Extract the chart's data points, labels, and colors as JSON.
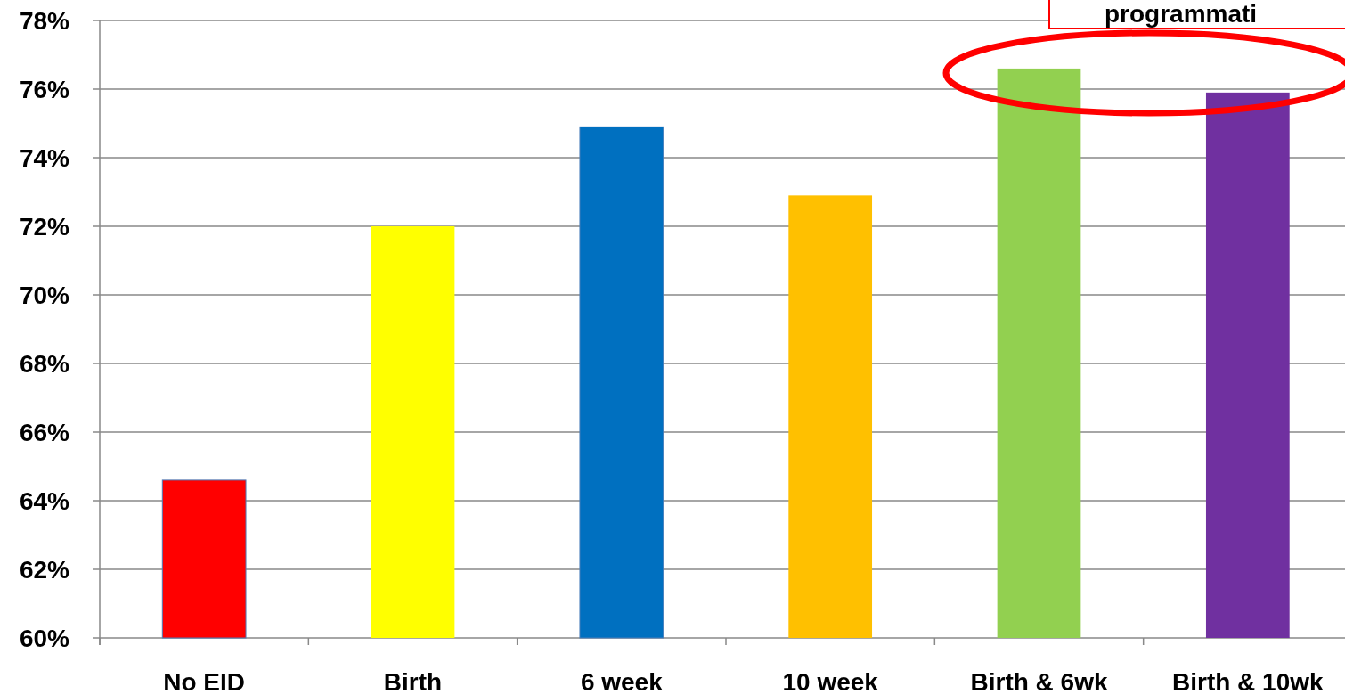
{
  "chart_data": {
    "type": "bar",
    "categories": [
      "No EID",
      "Birth",
      "6 week",
      "10 week",
      "Birth & 6wk",
      "Birth & 10wk"
    ],
    "values": [
      64.6,
      72.0,
      74.9,
      72.9,
      76.6,
      75.9
    ],
    "colors": [
      "#ff0000",
      "#ffff00",
      "#0070c0",
      "#ffc000",
      "#92d050",
      "#7030a0"
    ],
    "ylim": [
      60,
      78
    ],
    "yticks": [
      {
        "value": 60,
        "label": "60%"
      },
      {
        "value": 62,
        "label": "62%"
      },
      {
        "value": 64,
        "label": "64%"
      },
      {
        "value": 66,
        "label": "66%"
      },
      {
        "value": 68,
        "label": "68%"
      },
      {
        "value": 70,
        "label": "70%"
      },
      {
        "value": 72,
        "label": "72%"
      },
      {
        "value": 74,
        "label": "74%"
      },
      {
        "value": 76,
        "label": "76%"
      },
      {
        "value": 78,
        "label": "78%"
      }
    ],
    "grid": "y",
    "annotations": [
      "programmati"
    ]
  }
}
